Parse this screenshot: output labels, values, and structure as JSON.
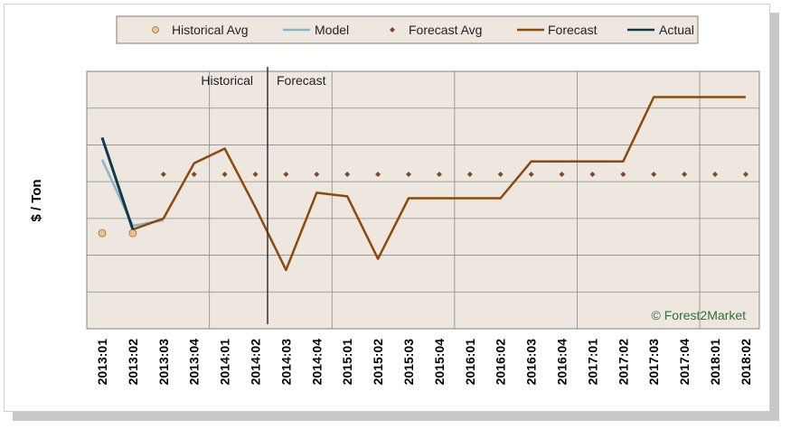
{
  "chart_data": {
    "type": "line",
    "ylabel": "$ / Ton",
    "xlabel": "",
    "categories": [
      "2013:01",
      "2013:02",
      "2013:03",
      "2013:04",
      "2014:01",
      "2014:02",
      "2014:03",
      "2014:04",
      "2015:01",
      "2015:02",
      "2015:03",
      "2015:04",
      "2016:01",
      "2016:02",
      "2016:03",
      "2016:04",
      "2017:01",
      "2017:02",
      "2017:03",
      "2017:04",
      "2018:01",
      "2018:02"
    ],
    "ylim": [
      0,
      7
    ],
    "grid": true,
    "legend_position": "top",
    "series": [
      {
        "name": "Historical Avg",
        "kind": "marker-circle",
        "color": "#f0c090",
        "values": [
          2.6,
          2.6,
          null,
          null,
          null,
          null,
          null,
          null,
          null,
          null,
          null,
          null,
          null,
          null,
          null,
          null,
          null,
          null,
          null,
          null,
          null,
          null
        ]
      },
      {
        "name": "Model",
        "kind": "line",
        "color": "#8fb4c8",
        "values": [
          4.6,
          2.8,
          2.95,
          null,
          null,
          null,
          null,
          null,
          null,
          null,
          null,
          null,
          null,
          null,
          null,
          null,
          null,
          null,
          null,
          null,
          null,
          null
        ]
      },
      {
        "name": "Forecast Avg",
        "kind": "marker-diamond",
        "color": "#7a4a2a",
        "values": [
          null,
          null,
          4.2,
          4.2,
          4.2,
          4.2,
          4.2,
          4.2,
          4.2,
          4.2,
          4.2,
          4.2,
          4.2,
          4.2,
          4.2,
          4.2,
          4.2,
          4.2,
          4.2,
          4.2,
          4.2,
          4.2
        ]
      },
      {
        "name": "Forecast",
        "kind": "line",
        "color": "#8b4a0a",
        "values": [
          null,
          2.7,
          3.0,
          4.5,
          4.9,
          3.3,
          1.6,
          3.7,
          3.6,
          1.9,
          3.55,
          3.55,
          3.55,
          3.55,
          4.55,
          4.55,
          4.55,
          4.55,
          6.3,
          6.3,
          6.3,
          6.3
        ]
      },
      {
        "name": "Actual",
        "kind": "line",
        "color": "#103848",
        "values": [
          5.2,
          2.7,
          null,
          null,
          null,
          null,
          null,
          null,
          null,
          null,
          null,
          null,
          null,
          null,
          null,
          null,
          null,
          null,
          null,
          null,
          null,
          null
        ]
      }
    ],
    "annotations": {
      "divider_after_category": "2014:02",
      "left": "Historical",
      "right": "Forecast",
      "watermark": "© Forest2Market"
    }
  }
}
